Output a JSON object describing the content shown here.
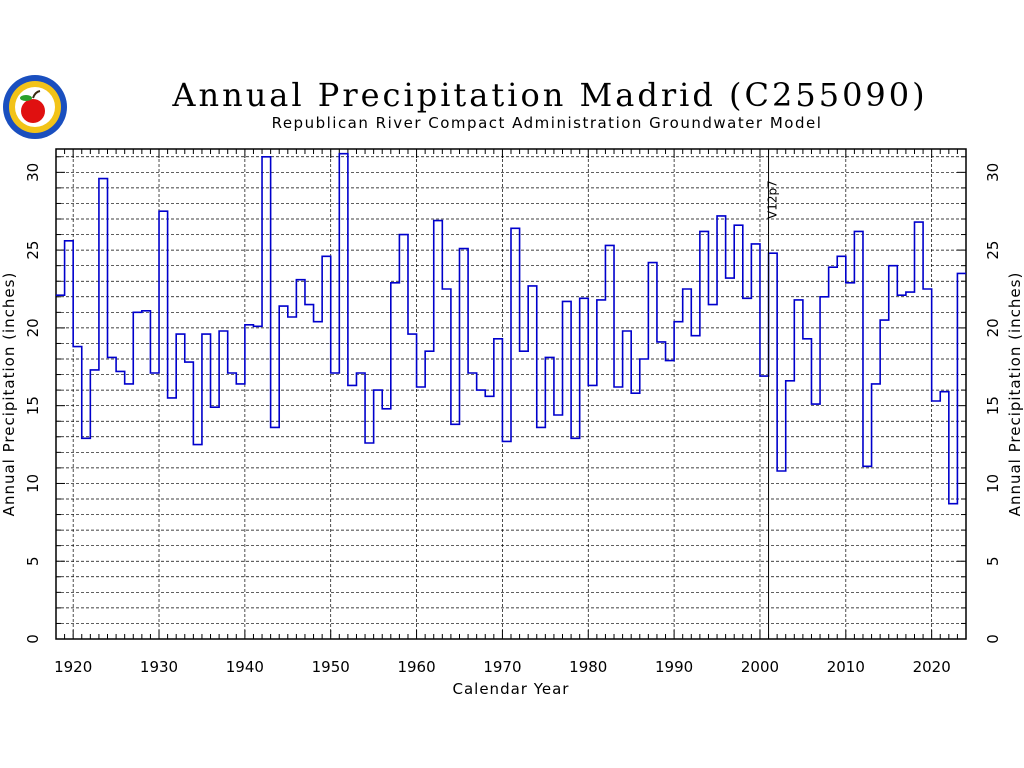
{
  "chart_data": {
    "type": "line",
    "style": "step",
    "title": "Annual Precipitation Madrid (C255090)",
    "subtitle": "Republican River Compact Administration Groundwater Model",
    "xlabel": "Calendar Year",
    "ylabel": "Annual Precipitation (inches)",
    "xlim": [
      1918,
      2024
    ],
    "ylim": [
      0,
      31.5
    ],
    "xticks": [
      1920,
      1930,
      1940,
      1950,
      1960,
      1970,
      1980,
      1990,
      2000,
      2010,
      2020
    ],
    "yticks": [
      0,
      5,
      10,
      15,
      20,
      25,
      30
    ],
    "grid": true,
    "line_color": "#0000cc",
    "annotation": {
      "x": 2001,
      "label": "V12p7"
    },
    "years": [
      1918,
      1919,
      1920,
      1921,
      1922,
      1923,
      1924,
      1925,
      1926,
      1927,
      1928,
      1929,
      1930,
      1931,
      1932,
      1933,
      1934,
      1935,
      1936,
      1937,
      1938,
      1939,
      1940,
      1941,
      1942,
      1943,
      1944,
      1945,
      1946,
      1947,
      1948,
      1949,
      1950,
      1951,
      1952,
      1953,
      1954,
      1955,
      1956,
      1957,
      1958,
      1959,
      1960,
      1961,
      1962,
      1963,
      1964,
      1965,
      1966,
      1967,
      1968,
      1969,
      1970,
      1971,
      1972,
      1973,
      1974,
      1975,
      1976,
      1977,
      1978,
      1979,
      1980,
      1981,
      1982,
      1983,
      1984,
      1985,
      1986,
      1987,
      1988,
      1989,
      1990,
      1991,
      1992,
      1993,
      1994,
      1995,
      1996,
      1997,
      1998,
      1999,
      2000,
      2001,
      2002,
      2003,
      2004,
      2005,
      2006,
      2007,
      2008,
      2009,
      2010,
      2011,
      2012,
      2013,
      2014,
      2015,
      2016,
      2017,
      2018,
      2019,
      2020,
      2021,
      2022,
      2023
    ],
    "values": [
      22.1,
      25.6,
      18.8,
      12.9,
      17.3,
      29.6,
      18.1,
      17.2,
      16.4,
      21.0,
      21.1,
      17.1,
      27.5,
      15.5,
      19.6,
      17.8,
      12.5,
      19.6,
      14.9,
      19.8,
      17.1,
      16.4,
      20.2,
      20.1,
      31.0,
      13.6,
      21.4,
      20.7,
      23.1,
      21.5,
      20.4,
      24.6,
      17.1,
      31.2,
      16.3,
      17.1,
      12.6,
      16.0,
      14.8,
      22.9,
      26.0,
      19.6,
      16.2,
      18.5,
      26.9,
      22.5,
      13.8,
      25.1,
      17.1,
      16.0,
      15.6,
      19.3,
      12.7,
      26.4,
      18.5,
      22.7,
      13.6,
      18.1,
      14.4,
      21.7,
      12.9,
      21.9,
      16.3,
      21.8,
      25.3,
      16.2,
      19.8,
      15.8,
      18.0,
      24.2,
      19.1,
      17.9,
      20.4,
      22.5,
      19.5,
      26.2,
      21.5,
      27.2,
      23.2,
      26.6,
      21.9,
      25.4,
      16.9,
      24.8,
      10.8,
      16.6,
      21.8,
      19.3,
      15.1,
      22.0,
      23.9,
      24.6,
      22.9,
      26.2,
      11.1,
      16.4,
      20.5,
      24.0,
      22.1,
      22.3,
      26.8,
      22.5,
      15.3,
      15.9,
      8.7,
      23.5
    ]
  }
}
